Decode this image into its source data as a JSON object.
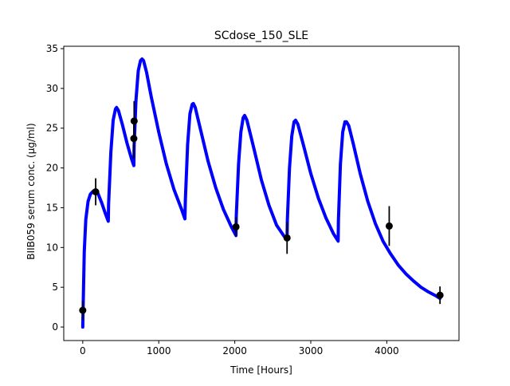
{
  "chart_data": {
    "type": "line",
    "title": "SCdose_150_SLE",
    "xlabel": "Time [Hours]",
    "ylabel": "BIIB059 serum conc. (µg/ml)",
    "xlim": [
      -250,
      4950
    ],
    "ylim": [
      -1.7,
      35.3
    ],
    "xticks": [
      0,
      1000,
      2000,
      3000,
      4000
    ],
    "yticks": [
      0,
      5,
      10,
      15,
      20,
      25,
      30,
      35
    ],
    "grid": false,
    "series": [
      {
        "color": "#0000ff",
        "style": "thick-line",
        "x": [
          0,
          20,
          40,
          70,
          100,
          140,
          170,
          200,
          250,
          300,
          336,
          340,
          370,
          400,
          430,
          445,
          470,
          520,
          580,
          640,
          672,
          676,
          700,
          730,
          760,
          780,
          800,
          840,
          900,
          1000,
          1100,
          1200,
          1300,
          1344,
          1350,
          1380,
          1410,
          1440,
          1455,
          1480,
          1550,
          1650,
          1750,
          1850,
          1950,
          2016,
          2020,
          2050,
          2080,
          2110,
          2130,
          2160,
          2250,
          2350,
          2450,
          2550,
          2650,
          2688,
          2692,
          2720,
          2750,
          2780,
          2800,
          2830,
          2900,
          3000,
          3100,
          3200,
          3300,
          3360,
          3364,
          3390,
          3420,
          3450,
          3470,
          3500,
          3560,
          3650,
          3750,
          3850,
          3950,
          4050,
          4150,
          4250,
          4350,
          4450,
          4550,
          4650,
          4700
        ],
        "y": [
          0,
          9.5,
          13.5,
          15.8,
          16.7,
          17.1,
          17.1,
          16.8,
          15.6,
          14.2,
          13.3,
          15.5,
          22.0,
          26.0,
          27.4,
          27.6,
          27.2,
          25.5,
          23.2,
          21.2,
          20.3,
          22.8,
          28.5,
          32.2,
          33.5,
          33.7,
          33.5,
          32.0,
          29.0,
          24.5,
          20.5,
          17.3,
          14.8,
          13.6,
          16.0,
          23.0,
          26.8,
          28.0,
          28.1,
          27.6,
          24.8,
          20.8,
          17.5,
          14.8,
          12.7,
          11.5,
          14.0,
          20.5,
          24.5,
          26.3,
          26.6,
          26.0,
          22.5,
          18.5,
          15.3,
          12.8,
          11.4,
          11.0,
          13.5,
          20.0,
          24.0,
          25.8,
          26.0,
          25.5,
          23.0,
          19.3,
          16.2,
          13.7,
          11.7,
          10.8,
          13.5,
          20.5,
          24.5,
          25.8,
          25.8,
          25.3,
          23.0,
          19.3,
          15.8,
          13.0,
          10.8,
          9.2,
          7.8,
          6.7,
          5.8,
          5.0,
          4.4,
          3.9,
          3.6
        ]
      }
    ],
    "observations": [
      {
        "x": 0,
        "y": 2.1,
        "err_lo": 1.2,
        "err_hi": 1.2
      },
      {
        "x": 170,
        "y": 17.0,
        "err_lo": 1.7,
        "err_hi": 1.7
      },
      {
        "x": 672,
        "y": 23.7,
        "err_lo": 2.5,
        "err_hi": 2.5
      },
      {
        "x": 676,
        "y": 25.9,
        "err_lo": 2.5,
        "err_hi": 2.5
      },
      {
        "x": 2016,
        "y": 12.6,
        "err_lo": 1.2,
        "err_hi": 1.2
      },
      {
        "x": 2688,
        "y": 11.2,
        "err_lo": 2.0,
        "err_hi": 2.0
      },
      {
        "x": 4032,
        "y": 12.7,
        "err_lo": 2.5,
        "err_hi": 2.5
      },
      {
        "x": 4700,
        "y": 4.0,
        "err_lo": 1.1,
        "err_hi": 1.1
      }
    ],
    "marker_color": "#000000"
  }
}
